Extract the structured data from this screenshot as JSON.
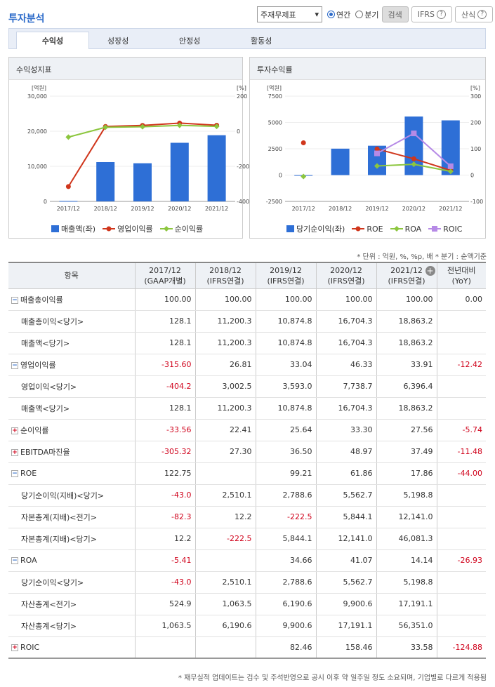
{
  "page": {
    "title": "투자분석"
  },
  "controls": {
    "statement_select": "주재무제표",
    "radio_annual": "연간",
    "radio_quarter": "분기",
    "search_button": "검색",
    "ifrs_button": "IFRS",
    "calc_button": "산식"
  },
  "tabs": [
    {
      "label": "수익성"
    },
    {
      "label": "성장성"
    },
    {
      "label": "안정성"
    },
    {
      "label": "활동성"
    }
  ],
  "colors": {
    "bar": "#2e6fd6",
    "red": "#d0361c",
    "green": "#8cc63e",
    "purple": "#b68ae6"
  },
  "chart_data": [
    {
      "type": "bar",
      "title": "수익성지표",
      "unit_left": "[억원]",
      "unit_right": "[%]",
      "categories": [
        "2017/12",
        "2018/12",
        "2019/12",
        "2020/12",
        "2021/12"
      ],
      "left_ticks": [
        "30,000",
        "20,000",
        "10,000",
        "0"
      ],
      "right_ticks": [
        "200",
        "0",
        "-200",
        "-400"
      ],
      "ylim_left": [
        0,
        30000
      ],
      "ylim_right": [
        -400,
        200
      ],
      "series": [
        {
          "name": "매출액(좌)",
          "type": "bar",
          "axis": "left",
          "values": [
            128.1,
            11200.3,
            10874.8,
            16704.3,
            18863.2
          ]
        },
        {
          "name": "영업이익률",
          "type": "line",
          "axis": "right",
          "values": [
            -315.6,
            26.81,
            33.04,
            46.33,
            33.91
          ]
        },
        {
          "name": "순이익률",
          "type": "line",
          "axis": "right",
          "values": [
            -33.56,
            22.41,
            25.64,
            33.3,
            27.56
          ]
        }
      ]
    },
    {
      "type": "bar",
      "title": "투자수익률",
      "unit_left": "[억원]",
      "unit_right": "[%]",
      "categories": [
        "2017/12",
        "2018/12",
        "2019/12",
        "2020/12",
        "2021/12"
      ],
      "left_ticks": [
        "7500",
        "5000",
        "2500",
        "0",
        "-2500"
      ],
      "right_ticks": [
        "300",
        "200",
        "100",
        "0",
        "-100"
      ],
      "ylim_left": [
        -2500,
        7500
      ],
      "ylim_right": [
        -100,
        300
      ],
      "series": [
        {
          "name": "당기순이익(좌)",
          "type": "bar",
          "axis": "left",
          "values": [
            -43.0,
            2510.1,
            2788.6,
            5562.7,
            5198.8
          ]
        },
        {
          "name": "ROE",
          "type": "line",
          "axis": "right",
          "values": [
            122.75,
            null,
            99.21,
            61.86,
            17.86
          ]
        },
        {
          "name": "ROA",
          "type": "line",
          "axis": "right",
          "values": [
            -5.41,
            null,
            34.66,
            41.07,
            14.14
          ]
        },
        {
          "name": "ROIC",
          "type": "line",
          "axis": "right",
          "values": [
            null,
            null,
            82.46,
            158.46,
            33.58
          ]
        }
      ]
    }
  ],
  "table": {
    "note_top": "* 단위 : 억원, %, %p, 배   * 분기 : 순액기준",
    "headers": [
      "항목",
      "2017/12\n(GAAP개별)",
      "2018/12\n(IFRS연결)",
      "2019/12\n(IFRS연결)",
      "2020/12\n(IFRS연결)",
      "2021/12\n(IFRS연결)",
      "전년대비\n(YoY)"
    ],
    "rows": [
      {
        "label": "매출총이익률",
        "toggle": "minus",
        "cells": [
          "100.00",
          "100.00",
          "100.00",
          "100.00",
          "100.00",
          "0.00"
        ]
      },
      {
        "label": "매출총이익<당기>",
        "sub": true,
        "cells": [
          "128.1",
          "11,200.3",
          "10,874.8",
          "16,704.3",
          "18,863.2",
          ""
        ]
      },
      {
        "label": "매출액<당기>",
        "sub": true,
        "cells": [
          "128.1",
          "11,200.3",
          "10,874.8",
          "16,704.3",
          "18,863.2",
          ""
        ]
      },
      {
        "label": "영업이익률",
        "toggle": "minus",
        "cells": [
          "-315.60",
          "26.81",
          "33.04",
          "46.33",
          "33.91",
          "-12.42"
        ]
      },
      {
        "label": "영업이익<당기>",
        "sub": true,
        "cells": [
          "-404.2",
          "3,002.5",
          "3,593.0",
          "7,738.7",
          "6,396.4",
          ""
        ]
      },
      {
        "label": "매출액<당기>",
        "sub": true,
        "cells": [
          "128.1",
          "11,200.3",
          "10,874.8",
          "16,704.3",
          "18,863.2",
          ""
        ]
      },
      {
        "label": "순이익률",
        "toggle": "plus",
        "cells": [
          "-33.56",
          "22.41",
          "25.64",
          "33.30",
          "27.56",
          "-5.74"
        ]
      },
      {
        "label": "EBITDA마진율",
        "toggle": "plus",
        "cells": [
          "-305.32",
          "27.30",
          "36.50",
          "48.97",
          "37.49",
          "-11.48"
        ]
      },
      {
        "label": "ROE",
        "toggle": "minus",
        "cells": [
          "122.75",
          "",
          "99.21",
          "61.86",
          "17.86",
          "-44.00"
        ]
      },
      {
        "label": "당기순이익(지배)<당기>",
        "sub": true,
        "cells": [
          "-43.0",
          "2,510.1",
          "2,788.6",
          "5,562.7",
          "5,198.8",
          ""
        ]
      },
      {
        "label": "자본총계(지배)<전기>",
        "sub": true,
        "cells": [
          "-82.3",
          "12.2",
          "-222.5",
          "5,844.1",
          "12,141.0",
          ""
        ]
      },
      {
        "label": "자본총계(지배)<당기>",
        "sub": true,
        "cells": [
          "12.2",
          "-222.5",
          "5,844.1",
          "12,141.0",
          "46,081.3",
          ""
        ]
      },
      {
        "label": "ROA",
        "toggle": "minus",
        "cells": [
          "-5.41",
          "",
          "34.66",
          "41.07",
          "14.14",
          "-26.93"
        ]
      },
      {
        "label": "당기순이익<당기>",
        "sub": true,
        "cells": [
          "-43.0",
          "2,510.1",
          "2,788.6",
          "5,562.7",
          "5,198.8",
          ""
        ]
      },
      {
        "label": "자산총계<전기>",
        "sub": true,
        "cells": [
          "524.9",
          "1,063.5",
          "6,190.6",
          "9,900.6",
          "17,191.1",
          ""
        ]
      },
      {
        "label": "자산총계<당기>",
        "sub": true,
        "cells": [
          "1,063.5",
          "6,190.6",
          "9,900.6",
          "17,191.1",
          "56,351.0",
          ""
        ]
      },
      {
        "label": "ROIC",
        "toggle": "plus",
        "cells": [
          "",
          "",
          "82.46",
          "158.46",
          "33.58",
          "-124.88"
        ]
      }
    ],
    "note_bottom": "* 재무실적 업데이트는 검수 및 주석반영으로 공시 이후 약 일주일 정도 소요되며, 기업별로 다르게 적용됨"
  }
}
